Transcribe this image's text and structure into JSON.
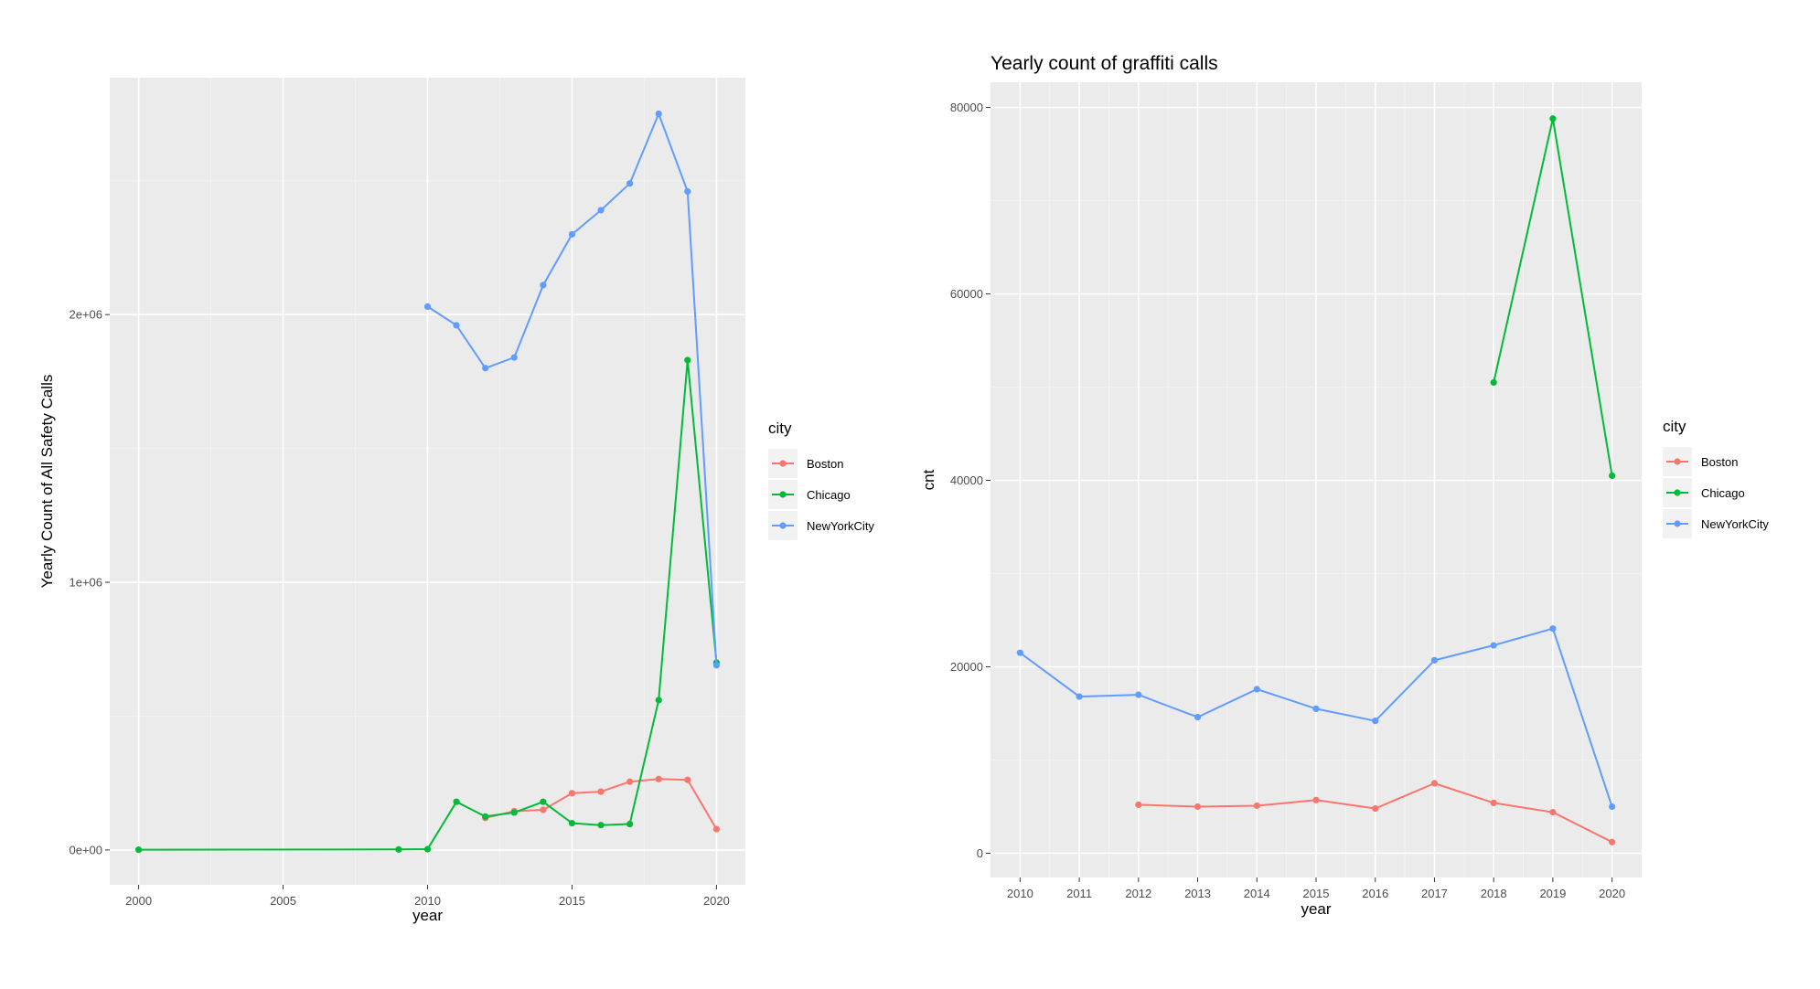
{
  "colors": {
    "Boston": "#f8766d",
    "Chicago": "#00ba38",
    "NewYorkCity": "#619cff"
  },
  "chart_data": [
    {
      "type": "line",
      "title": "",
      "xlabel": "year",
      "ylabel": "Yearly Count of All Safety Calls",
      "xlim": [
        1999,
        2021
      ],
      "ylim": [
        -130000,
        2885000
      ],
      "x_ticks": [
        2000,
        2005,
        2010,
        2015,
        2020
      ],
      "x_tick_labels": [
        "2000",
        "2005",
        "2010",
        "2015",
        "2020"
      ],
      "y_ticks": [
        0,
        1000000,
        2000000
      ],
      "y_tick_labels": [
        "0e+00",
        "1e+06",
        "2e+06"
      ],
      "grid": true,
      "legend": {
        "title": "city",
        "position": "right",
        "entries": [
          "Boston",
          "Chicago",
          "NewYorkCity"
        ]
      },
      "series": [
        {
          "name": "Boston",
          "x": [
            2012,
            2013,
            2014,
            2015,
            2016,
            2017,
            2018,
            2019,
            2020
          ],
          "y": [
            120000,
            145000,
            150000,
            212000,
            218000,
            255000,
            265000,
            262000,
            78000
          ]
        },
        {
          "name": "Chicago",
          "x": [
            2000,
            2009,
            2010,
            2011,
            2012,
            2013,
            2014,
            2015,
            2016,
            2017,
            2018,
            2019,
            2020
          ],
          "y": [
            1000,
            2000,
            3000,
            180000,
            125000,
            140000,
            180000,
            100000,
            93000,
            97000,
            560000,
            1830000,
            700000
          ]
        },
        {
          "name": "NewYorkCity",
          "x": [
            2010,
            2011,
            2012,
            2013,
            2014,
            2015,
            2016,
            2017,
            2018,
            2019,
            2020
          ],
          "y": [
            2030000,
            1960000,
            1800000,
            1840000,
            2110000,
            2300000,
            2390000,
            2490000,
            2750000,
            2460000,
            690000
          ]
        }
      ]
    },
    {
      "type": "line",
      "title": "Yearly count of graffiti calls",
      "xlabel": "year",
      "ylabel": "cnt",
      "xlim": [
        2009.5,
        2020.5
      ],
      "ylim": [
        -2600,
        82700
      ],
      "x_ticks": [
        2010,
        2011,
        2012,
        2013,
        2014,
        2015,
        2016,
        2017,
        2018,
        2019,
        2020
      ],
      "x_tick_labels": [
        "2010",
        "2011",
        "2012",
        "2013",
        "2014",
        "2015",
        "2016",
        "2017",
        "2018",
        "2019",
        "2020"
      ],
      "y_ticks": [
        0,
        20000,
        40000,
        60000,
        80000
      ],
      "y_tick_labels": [
        "0",
        "20000",
        "40000",
        "60000",
        "80000"
      ],
      "grid": true,
      "legend": {
        "title": "city",
        "position": "right",
        "entries": [
          "Boston",
          "Chicago",
          "NewYorkCity"
        ]
      },
      "series": [
        {
          "name": "Boston",
          "x": [
            2012,
            2013,
            2014,
            2015,
            2016,
            2017,
            2018,
            2019,
            2020
          ],
          "y": [
            5200,
            5000,
            5100,
            5700,
            4800,
            7500,
            5400,
            4400,
            1200
          ]
        },
        {
          "name": "Chicago",
          "x": [
            2018,
            2019,
            2020
          ],
          "y": [
            50500,
            78800,
            40500
          ]
        },
        {
          "name": "NewYorkCity",
          "x": [
            2010,
            2011,
            2012,
            2013,
            2014,
            2015,
            2016,
            2017,
            2018,
            2019,
            2020
          ],
          "y": [
            21500,
            16800,
            17000,
            14600,
            17600,
            15500,
            14200,
            20700,
            22300,
            24100,
            5000
          ]
        }
      ]
    }
  ]
}
